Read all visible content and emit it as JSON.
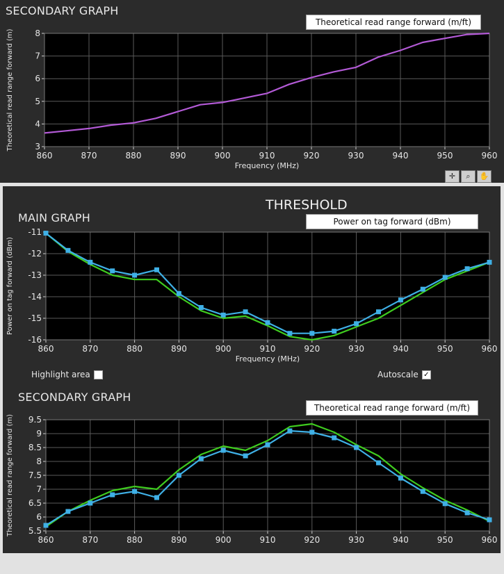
{
  "top_panel": {
    "title": "SECONDARY GRAPH",
    "series_label": "Theoretical read range forward (m/ft)",
    "tools": [
      "crosshair-icon",
      "zoom-icon",
      "pan-hand-icon"
    ]
  },
  "bottom_panel": {
    "heading": "THRESHOLD",
    "main_title": "MAIN GRAPH",
    "main_series_label": "Power on tag forward (dBm)",
    "highlight_label": "Highlight area",
    "highlight_checked": false,
    "autoscale_label": "Autoscale",
    "autoscale_checked": true,
    "autoscale_mark": "✓",
    "secondary_title": "SECONDARY GRAPH",
    "secondary_series_label": "Theoretical read range forward (m/ft)"
  },
  "colors": {
    "plot_bg": "#000000",
    "grid": "#5a5a5a",
    "purple": "#b35ad6",
    "blue": "#3fb0e6",
    "green": "#3fcc1f"
  },
  "chart_data": [
    {
      "type": "line",
      "title": "SECONDARY GRAPH",
      "xlabel": "Frequency (MHz)",
      "ylabel": "Theoretical read range forward (m)",
      "xlim": [
        860,
        960
      ],
      "ylim": [
        3,
        8
      ],
      "xticks": [
        860,
        870,
        880,
        890,
        900,
        910,
        920,
        930,
        940,
        950,
        960
      ],
      "yticks": [
        3,
        4,
        5,
        6,
        7,
        8
      ],
      "x": [
        860,
        865,
        870,
        875,
        880,
        885,
        890,
        895,
        900,
        905,
        910,
        915,
        920,
        925,
        930,
        935,
        940,
        945,
        950,
        955,
        960
      ],
      "series": [
        {
          "name": "Theoretical read range forward",
          "color": "#b35ad6",
          "markers": false,
          "values": [
            3.6,
            3.7,
            3.8,
            3.95,
            4.05,
            4.25,
            4.55,
            4.85,
            4.95,
            5.15,
            5.35,
            5.75,
            6.05,
            6.3,
            6.5,
            6.95,
            7.25,
            7.6,
            7.78,
            7.95,
            8.0
          ]
        }
      ]
    },
    {
      "type": "line",
      "title": "MAIN GRAPH",
      "xlabel": "Frequency (MHz)",
      "ylabel": "Power on tag forward (dBm)",
      "xlim": [
        860,
        960
      ],
      "ylim": [
        -16,
        -11
      ],
      "xticks": [
        860,
        870,
        880,
        890,
        900,
        910,
        920,
        930,
        940,
        950,
        960
      ],
      "yticks": [
        -16,
        -15,
        -14,
        -13,
        -12,
        -11
      ],
      "x": [
        860,
        865,
        870,
        875,
        880,
        885,
        890,
        895,
        900,
        905,
        910,
        915,
        920,
        925,
        930,
        935,
        940,
        945,
        950,
        955,
        960
      ],
      "series": [
        {
          "name": "Threshold",
          "color": "#3fcc1f",
          "markers": false,
          "values": [
            -11.05,
            -11.9,
            -12.5,
            -13.0,
            -13.2,
            -13.2,
            -14.0,
            -14.65,
            -15.0,
            -14.9,
            -15.35,
            -15.85,
            -16.0,
            -15.8,
            -15.4,
            -15.0,
            -14.4,
            -13.8,
            -13.2,
            -12.8,
            -12.4
          ]
        },
        {
          "name": "Power on tag forward",
          "color": "#3fb0e6",
          "markers": true,
          "values": [
            -11.05,
            -11.85,
            -12.4,
            -12.8,
            -13.0,
            -12.75,
            -13.85,
            -14.5,
            -14.85,
            -14.7,
            -15.2,
            -15.7,
            -15.7,
            -15.6,
            -15.25,
            -14.7,
            -14.15,
            -13.65,
            -13.1,
            -12.7,
            -12.4
          ]
        }
      ]
    },
    {
      "type": "line",
      "title": "SECONDARY GRAPH",
      "xlabel": "",
      "ylabel": "Theoretical read range forward (m)",
      "xlim": [
        860,
        960
      ],
      "ylim": [
        5.5,
        9.5
      ],
      "xticks": [
        860,
        870,
        880,
        890,
        900,
        910,
        920,
        930,
        940,
        950,
        960
      ],
      "yticks": [
        5.5,
        6,
        6.5,
        7,
        7.5,
        8,
        8.5,
        9,
        9.5
      ],
      "x": [
        860,
        865,
        870,
        875,
        880,
        885,
        890,
        895,
        900,
        905,
        910,
        915,
        920,
        925,
        930,
        935,
        940,
        945,
        950,
        955,
        960
      ],
      "series": [
        {
          "name": "Threshold",
          "color": "#3fcc1f",
          "markers": false,
          "values": [
            5.65,
            6.2,
            6.6,
            6.95,
            7.1,
            7.0,
            7.7,
            8.25,
            8.55,
            8.4,
            8.75,
            9.25,
            9.35,
            9.05,
            8.6,
            8.2,
            7.55,
            7.05,
            6.6,
            6.25,
            5.85
          ]
        },
        {
          "name": "Theoretical read range forward",
          "color": "#3fb0e6",
          "markers": true,
          "values": [
            5.7,
            6.2,
            6.5,
            6.8,
            6.92,
            6.7,
            7.5,
            8.1,
            8.4,
            8.2,
            8.6,
            9.1,
            9.05,
            8.85,
            8.5,
            7.95,
            7.4,
            6.92,
            6.48,
            6.15,
            5.9
          ]
        }
      ]
    }
  ]
}
